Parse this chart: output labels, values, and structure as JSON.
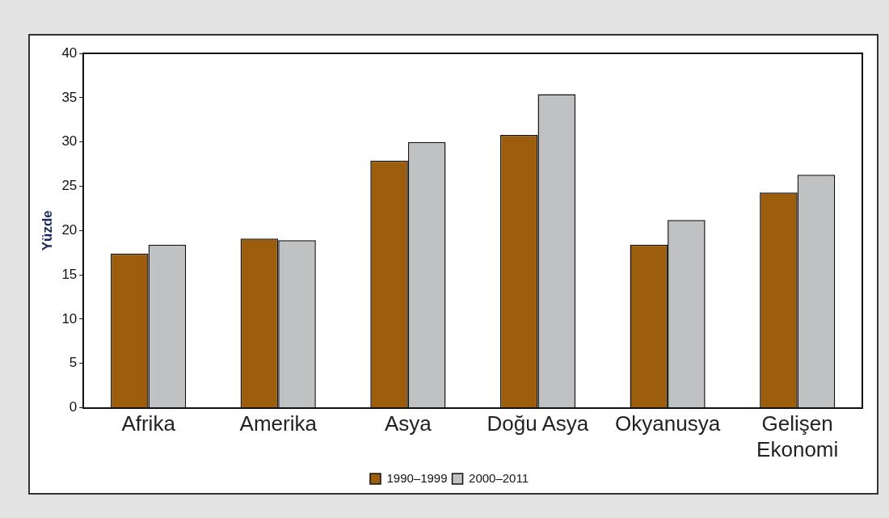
{
  "chart_data": {
    "type": "bar",
    "ylabel": "Yüzde",
    "categories": [
      "Afrika",
      "Amerika",
      "Asya",
      "Doğu Asya",
      "Okyanusya",
      "Gelişen Ekonomi"
    ],
    "series": [
      {
        "name": "1990–1999",
        "color": "#9c5e0c",
        "values": [
          17.4,
          19.1,
          27.9,
          30.8,
          18.4,
          24.3
        ]
      },
      {
        "name": "2000–2011",
        "color": "#c0c1c3",
        "values": [
          18.4,
          18.9,
          30.0,
          35.4,
          21.2,
          26.3
        ]
      }
    ],
    "ylim": [
      0,
      40
    ],
    "yticks": [
      0,
      5,
      10,
      15,
      20,
      25,
      30,
      35,
      40
    ],
    "legend": "bottom"
  }
}
